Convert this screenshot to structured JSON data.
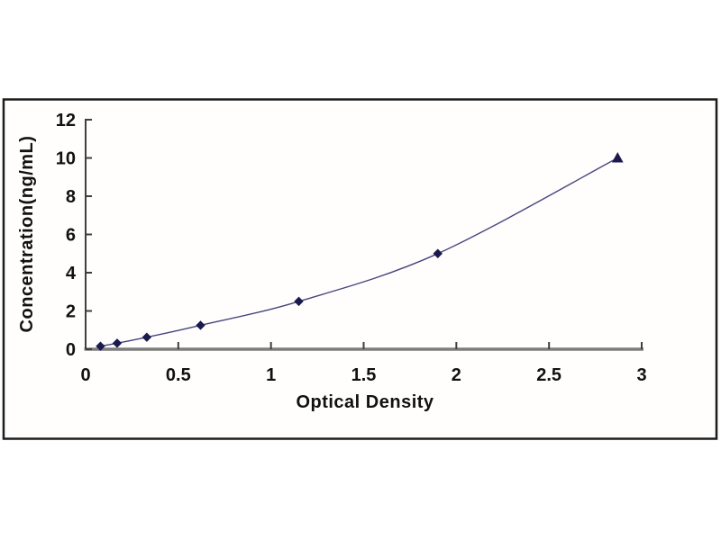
{
  "chart_data": {
    "type": "line",
    "title": "",
    "xlabel": "Optical Density",
    "ylabel": "Concentration(ng/mL)",
    "x": [
      0.08,
      0.17,
      0.33,
      0.62,
      1.15,
      1.9,
      2.87
    ],
    "y": [
      0.156,
      0.313,
      0.625,
      1.25,
      2.5,
      5,
      10
    ],
    "xlim": [
      0,
      3
    ],
    "ylim": [
      0,
      12
    ],
    "x_ticks": [
      0,
      0.5,
      1,
      1.5,
      2,
      2.5,
      3
    ],
    "y_ticks": [
      0,
      2,
      4,
      6,
      8,
      10,
      12
    ],
    "grid": false,
    "legend": "none",
    "markers": [
      "diamond",
      "diamond",
      "diamond",
      "diamond",
      "diamond",
      "diamond",
      "triangle"
    ],
    "colors": {
      "background": "#ffffff",
      "frame_border": "#1c1c1c",
      "x_axis": "#7d7d7d",
      "y_axis": "#3f3f3f",
      "tick": "#3f3f3f",
      "line": "#46467e",
      "marker": "#1a1a4e",
      "text": "#111111"
    }
  }
}
